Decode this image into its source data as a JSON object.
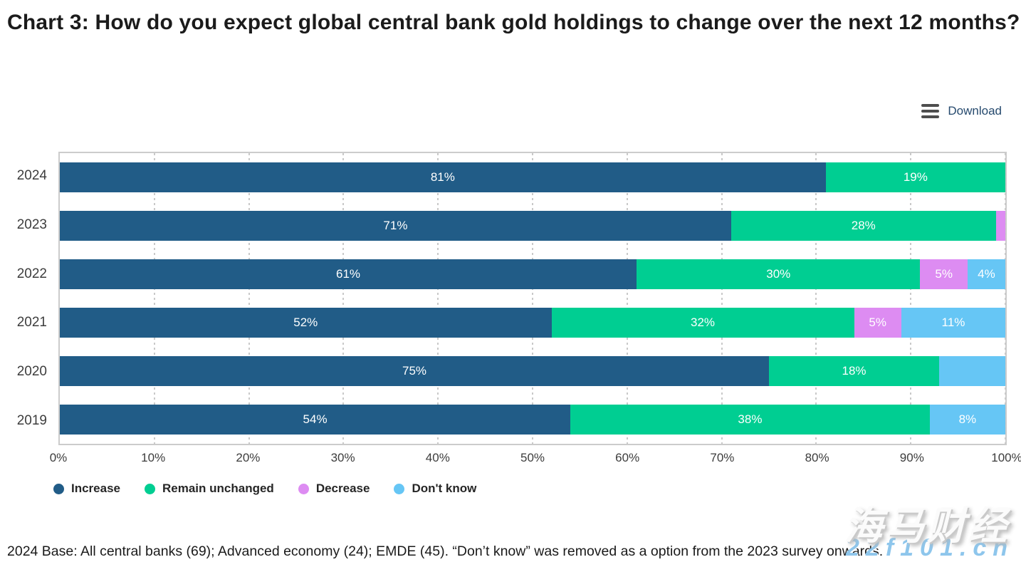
{
  "page": {
    "title": "Chart 3: How do you expect global central bank gold holdings to change over the next 12 months?"
  },
  "toolbar": {
    "download_label": "Download"
  },
  "chart_data": {
    "type": "bar",
    "orientation": "horizontal-stacked",
    "title": "Chart 3: How do you expect global central bank gold holdings to change over the next 12 months?",
    "categories": [
      "2024",
      "2023",
      "2022",
      "2021",
      "2020",
      "2019"
    ],
    "series": [
      {
        "name": "Increase",
        "color": "#215C87",
        "values": [
          81,
          71,
          61,
          52,
          75,
          54
        ]
      },
      {
        "name": "Remain unchanged",
        "color": "#00CE92",
        "values": [
          19,
          28,
          30,
          32,
          18,
          38
        ]
      },
      {
        "name": "Decrease",
        "color": "#DD8CF2",
        "values": [
          0,
          1,
          5,
          5,
          0,
          0
        ]
      },
      {
        "name": "Don't know",
        "color": "#66C6F5",
        "values": [
          0,
          0,
          4,
          11,
          7,
          8
        ]
      }
    ],
    "rows": [
      {
        "year": "2024",
        "segments": [
          {
            "series": 0,
            "value": 81,
            "label": "81%"
          },
          {
            "series": 1,
            "value": 19,
            "label": "19%"
          }
        ]
      },
      {
        "year": "2023",
        "segments": [
          {
            "series": 0,
            "value": 71,
            "label": "71%"
          },
          {
            "series": 1,
            "value": 28,
            "label": "28%"
          },
          {
            "series": 2,
            "value": 1,
            "label": ""
          }
        ]
      },
      {
        "year": "2022",
        "segments": [
          {
            "series": 0,
            "value": 61,
            "label": "61%"
          },
          {
            "series": 1,
            "value": 30,
            "label": "30%"
          },
          {
            "series": 2,
            "value": 5,
            "label": "5%"
          },
          {
            "series": 3,
            "value": 4,
            "label": "4%"
          }
        ]
      },
      {
        "year": "2021",
        "segments": [
          {
            "series": 0,
            "value": 52,
            "label": "52%"
          },
          {
            "series": 1,
            "value": 32,
            "label": "32%"
          },
          {
            "series": 2,
            "value": 5,
            "label": "5%"
          },
          {
            "series": 3,
            "value": 11,
            "label": "11%"
          }
        ]
      },
      {
        "year": "2020",
        "segments": [
          {
            "series": 0,
            "value": 75,
            "label": "75%"
          },
          {
            "series": 1,
            "value": 18,
            "label": "18%"
          },
          {
            "series": 3,
            "value": 7,
            "label": ""
          }
        ]
      },
      {
        "year": "2019",
        "segments": [
          {
            "series": 0,
            "value": 54,
            "label": "54%"
          },
          {
            "series": 1,
            "value": 38,
            "label": "38%"
          },
          {
            "series": 3,
            "value": 8,
            "label": "8%"
          }
        ]
      }
    ],
    "x_ticks": [
      "0%",
      "10%",
      "20%",
      "30%",
      "40%",
      "50%",
      "60%",
      "70%",
      "80%",
      "90%",
      "100%"
    ],
    "xlim": [
      0,
      100
    ],
    "xlabel": "",
    "ylabel": "",
    "grid": "vertical-dashed",
    "legend_position": "bottom"
  },
  "footer": {
    "note": "2024 Base: All central banks (69); Advanced economy (24); EMDE (45). “Don’t know” was removed as a option from the 2023 survey onwards."
  },
  "watermark": {
    "line1": "海马财经",
    "line2": "22f101.cn"
  }
}
